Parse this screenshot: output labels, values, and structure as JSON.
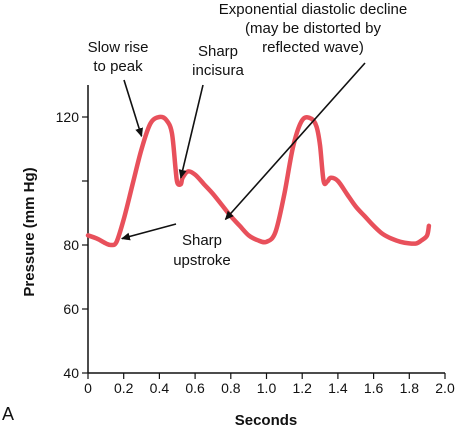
{
  "chart_data": {
    "type": "line",
    "panel_label": "A",
    "xlabel": "Seconds",
    "ylabel": "Pressure (mm Hg)",
    "xlim": [
      0,
      2.0
    ],
    "ylim": [
      40,
      130
    ],
    "xticks": [
      0,
      0.2,
      0.4,
      0.6,
      0.8,
      1.0,
      1.2,
      1.4,
      1.6,
      1.8,
      2.0
    ],
    "xtick_labels": [
      "0",
      "0.2",
      "0.4",
      "0.6",
      "0.8",
      "1.0",
      "1.2",
      "1.4",
      "1.6",
      "1.8",
      "2.0"
    ],
    "yticks": [
      40,
      60,
      80,
      100,
      120
    ],
    "ytick_labels": [
      "40",
      "60",
      "80",
      "",
      "120"
    ],
    "grid": false,
    "series_color": "#e8505b",
    "series": [
      {
        "x": [
          0,
          0.05,
          0.1,
          0.13,
          0.16,
          0.2,
          0.25,
          0.3,
          0.35,
          0.4,
          0.44,
          0.47,
          0.49,
          0.5,
          0.52,
          0.53,
          0.56,
          0.6,
          0.65,
          0.7,
          0.75,
          0.8,
          0.85,
          0.9,
          0.95,
          1.0,
          1.05,
          1.1,
          1.15,
          1.2,
          1.25,
          1.28,
          1.3,
          1.32,
          1.34,
          1.36,
          1.4,
          1.45,
          1.5,
          1.55,
          1.6,
          1.65,
          1.7,
          1.75,
          1.8,
          1.84,
          1.87,
          1.9,
          1.91
        ],
        "y": [
          83,
          82,
          80.5,
          80,
          81,
          88,
          99,
          110,
          118,
          120,
          119,
          115,
          104,
          99.5,
          99,
          101,
          103,
          102,
          99,
          96,
          92.5,
          89,
          86,
          83,
          81.5,
          81,
          84,
          96,
          111,
          119,
          119.5,
          117,
          111,
          100,
          99.8,
          101,
          100,
          96,
          92,
          89,
          86,
          83.5,
          82,
          81,
          80.5,
          80.5,
          81.5,
          83,
          86
        ]
      }
    ],
    "annotations": [
      {
        "lines": [
          "Exponential diastolic decline",
          "(may be distorted by",
          "reflected wave)"
        ],
        "points_to": [
          0.77,
          88
        ]
      },
      {
        "lines": [
          "Slow rise",
          "to peak"
        ],
        "points_to": [
          0.3,
          114
        ]
      },
      {
        "lines": [
          "Sharp",
          "incisura"
        ],
        "points_to": [
          0.52,
          101
        ]
      },
      {
        "lines": [
          "Sharp",
          "upstroke"
        ],
        "points_to": [
          0.19,
          82
        ]
      }
    ]
  }
}
